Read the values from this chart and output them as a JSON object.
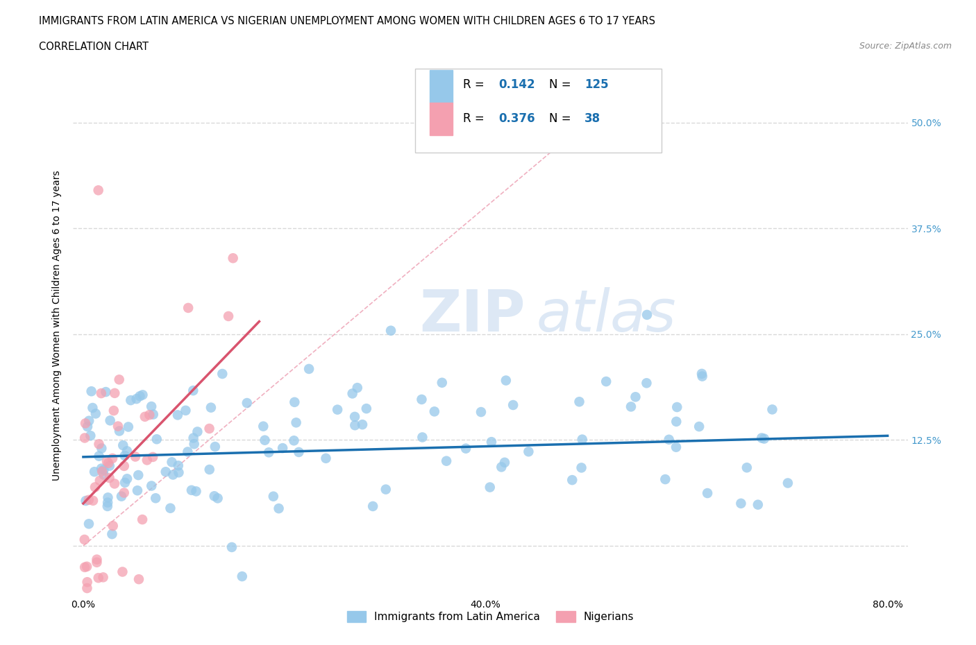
{
  "title_line1": "IMMIGRANTS FROM LATIN AMERICA VS NIGERIAN UNEMPLOYMENT AMONG WOMEN WITH CHILDREN AGES 6 TO 17 YEARS",
  "title_line2": "CORRELATION CHART",
  "source_text": "Source: ZipAtlas.com",
  "ylabel": "Unemployment Among Women with Children Ages 6 to 17 years",
  "xlim": [
    -0.01,
    0.82
  ],
  "ylim": [
    -0.06,
    0.58
  ],
  "yticks": [
    0.0,
    0.125,
    0.25,
    0.375,
    0.5
  ],
  "ytick_labels": [
    "",
    "12.5%",
    "25.0%",
    "37.5%",
    "50.0%"
  ],
  "xticks": [
    0.0,
    0.2,
    0.4,
    0.6,
    0.8
  ],
  "xtick_labels": [
    "0.0%",
    "",
    "40.0%",
    "",
    "80.0%"
  ],
  "blue_color": "#96c8ea",
  "pink_color": "#f4a0b0",
  "blue_line_color": "#1a6faf",
  "pink_line_color": "#d9546e",
  "diag_color": "#f0b8c0",
  "grid_color": "#d8d8d8",
  "R_blue": 0.142,
  "N_blue": 125,
  "R_pink": 0.376,
  "N_pink": 38,
  "legend_items": [
    "Immigrants from Latin America",
    "Nigerians"
  ],
  "blue_trend": [
    0.0,
    0.8,
    0.105,
    0.13
  ],
  "pink_trend": [
    0.0,
    0.175,
    0.05,
    0.265
  ],
  "diag_line": [
    0.0,
    0.52,
    0.0,
    0.52
  ]
}
